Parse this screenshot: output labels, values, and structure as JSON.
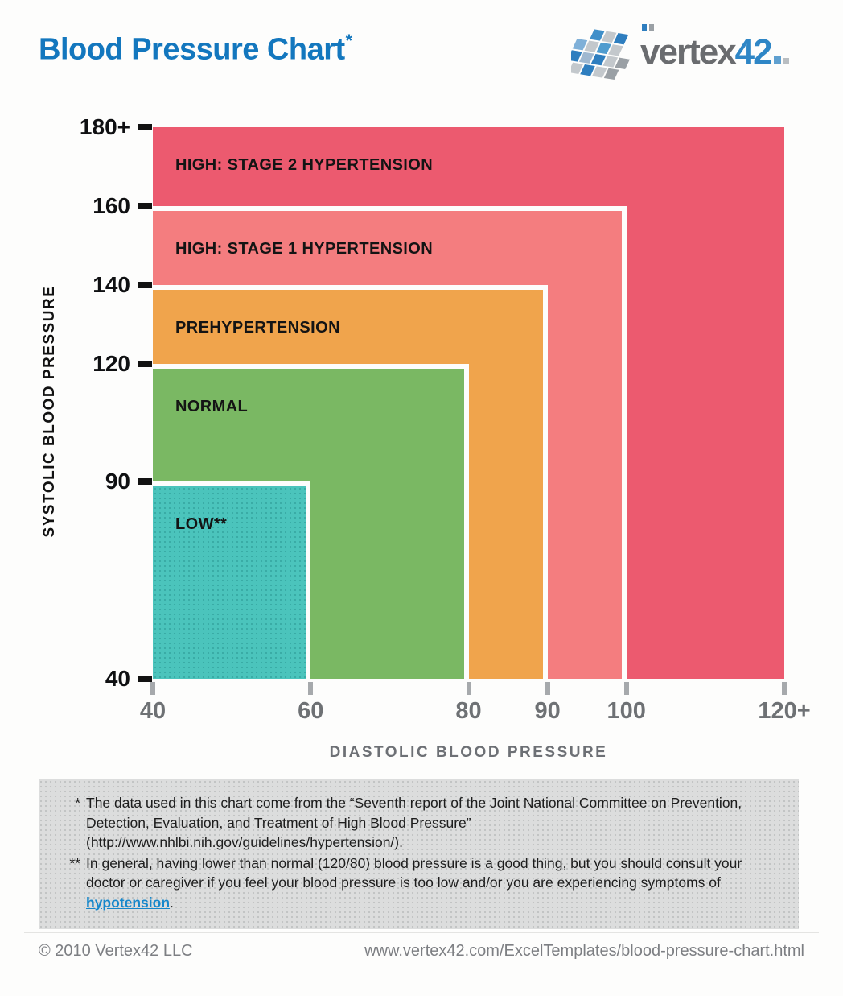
{
  "header": {
    "title": "Blood Pressure Chart",
    "asterisk": "*"
  },
  "logo": {
    "brand": "vertex",
    "brand_number": "42"
  },
  "colors": {
    "title_blue": "#1377BE",
    "link_blue": "#1687CB",
    "footnote_box": "#dcdddd",
    "axis_gray": "#6e7174"
  },
  "chart_data": {
    "type": "area",
    "title": "Blood Pressure Chart",
    "xlabel": "DIASTOLIC BLOOD PRESSURE",
    "ylabel": "SYSTOLIC BLOOD PRESSURE",
    "x_domain": [
      40,
      120
    ],
    "y_domain": [
      40,
      180
    ],
    "grid": false,
    "legend": "labels inside nested regions",
    "x_ticks": [
      {
        "label": "40",
        "value": 40
      },
      {
        "label": "60",
        "value": 60
      },
      {
        "label": "80",
        "value": 80
      },
      {
        "label": "90",
        "value": 90
      },
      {
        "label": "100",
        "value": 100
      },
      {
        "label": "120+",
        "value": 120
      }
    ],
    "y_ticks": [
      {
        "label": "180+",
        "value": 180
      },
      {
        "label": "160",
        "value": 160
      },
      {
        "label": "140",
        "value": 140
      },
      {
        "label": "120",
        "value": 120
      },
      {
        "label": "90",
        "value": 90
      },
      {
        "label": "40",
        "value": 40
      }
    ],
    "regions": [
      {
        "label": "HIGH: STAGE 2 HYPERTENSION",
        "color": "#EC5A6F",
        "systolic_range": [
          40,
          180
        ],
        "diastolic_range": [
          40,
          120
        ],
        "systolic_max_label": "180+",
        "diastolic_max_label": "120+"
      },
      {
        "label": "HIGH: STAGE 1 HYPERTENSION",
        "color": "#F47D7F",
        "systolic_range": [
          40,
          160
        ],
        "diastolic_range": [
          40,
          100
        ],
        "systolic_max_label": "160",
        "diastolic_max_label": "100"
      },
      {
        "label": "PREHYPERTENSION",
        "color": "#F0A44C",
        "systolic_range": [
          40,
          140
        ],
        "diastolic_range": [
          40,
          90
        ],
        "systolic_max_label": "140",
        "diastolic_max_label": "90"
      },
      {
        "label": "NORMAL",
        "color": "#7AB863",
        "systolic_range": [
          40,
          120
        ],
        "diastolic_range": [
          40,
          80
        ],
        "systolic_max_label": "120",
        "diastolic_max_label": "80"
      },
      {
        "label": "LOW**",
        "color": "#4BC4BC",
        "systolic_range": [
          40,
          90
        ],
        "diastolic_range": [
          40,
          60
        ],
        "systolic_max_label": "90",
        "diastolic_max_label": "60"
      }
    ]
  },
  "footnotes": {
    "items": [
      {
        "marker": "*",
        "text": "The data used in this chart come from the “Seventh report of the Joint National Committee on Prevention, Detection, Evaluation, and Treatment of High Blood Pressure”",
        "url_line": "(http://www.nhlbi.nih.gov/guidelines/hypertension/)."
      },
      {
        "marker": "**",
        "text": "In general, having lower than normal (120/80) blood pressure is a good thing, but you should consult your doctor or caregiver if you feel your blood pressure is too low and/or you are experiencing symptoms of ",
        "link_text": "hypotension",
        "suffix": "."
      }
    ]
  },
  "footer": {
    "copyright": "© 2010 Vertex42 LLC",
    "url": "www.vertex42.com/ExcelTemplates/blood-pressure-chart.html"
  }
}
